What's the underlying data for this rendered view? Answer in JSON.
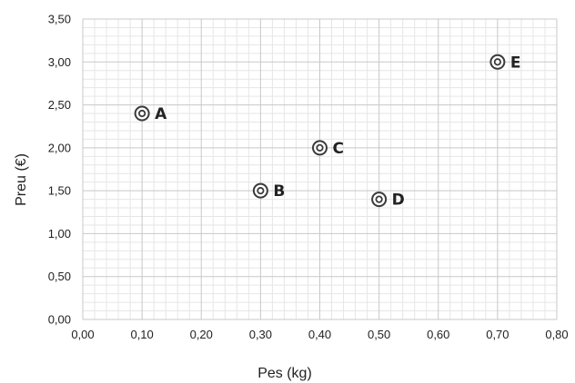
{
  "chart_data": {
    "type": "scatter",
    "title": "",
    "xlabel": "Pes (kg)",
    "ylabel": "Preu (€)",
    "xlim": [
      0,
      0.8
    ],
    "ylim": [
      0,
      3.5
    ],
    "x_ticks": [
      "0,00",
      "0,10",
      "0,20",
      "0,30",
      "0,40",
      "0,50",
      "0,60",
      "0,70",
      "0,80"
    ],
    "y_ticks": [
      "0,00",
      "0,50",
      "1,00",
      "1,50",
      "2,00",
      "2,50",
      "3,00",
      "3,50"
    ],
    "grid": true,
    "minor_grid": true,
    "legend": "none",
    "points": [
      {
        "label": "A",
        "x": 0.1,
        "y": 2.4
      },
      {
        "label": "B",
        "x": 0.3,
        "y": 1.5
      },
      {
        "label": "C",
        "x": 0.4,
        "y": 2.0
      },
      {
        "label": "D",
        "x": 0.5,
        "y": 1.4
      },
      {
        "label": "E",
        "x": 0.7,
        "y": 3.0
      }
    ],
    "colors": {
      "marker": "#3a3a3a",
      "major_grid": "#c8c8c8",
      "minor_grid": "#e6e6e6",
      "text": "#222222"
    }
  }
}
